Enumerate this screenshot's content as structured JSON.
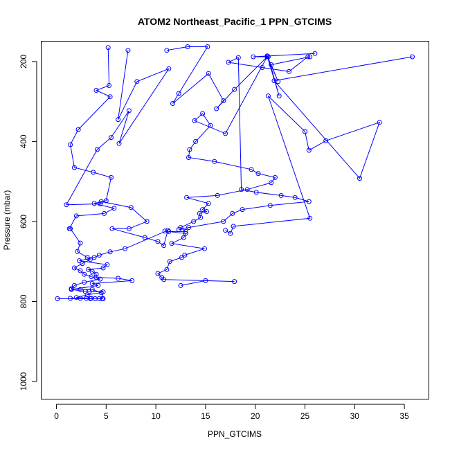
{
  "chart_data": {
    "type": "scatter",
    "title": "ATOM2 Northeast_Pacific_1 PPN_GTCIMS",
    "xlabel": "PPN_GTCIMS",
    "ylabel": "Pressure (mbar)",
    "xlim": [
      -1.5,
      37.5
    ],
    "ylim": [
      1045,
      150
    ],
    "y_reversed": true,
    "x_ticks": [
      0,
      5,
      10,
      15,
      20,
      25,
      30,
      35
    ],
    "y_ticks": [
      200,
      400,
      600,
      800,
      1000
    ],
    "grid": false,
    "legend": "none",
    "color": "#0000ff",
    "marker": "open-circle",
    "connect_points": true,
    "series": [
      {
        "x": [
          5.2,
          5.3,
          4,
          5.4,
          2.2,
          1.4,
          1.8,
          3.7,
          5.5,
          5.0,
          3.8,
          5.8,
          4.8,
          2.0,
          1.3,
          1.4,
          2.4,
          2.1,
          3.1,
          3.4,
          2.6,
          1.8,
          2.4,
          2.8,
          3.5,
          4.4,
          2.8,
          1.8,
          1.5,
          2.4,
          3.6,
          4.5,
          3.1,
          2.0,
          3.5,
          2.4,
          1.4,
          3.0,
          3.9,
          4.7,
          4.3,
          3.4,
          0.1
        ],
        "y": [
          165,
          260,
          272,
          288,
          370,
          408,
          465,
          477,
          490,
          548,
          555,
          567,
          580,
          586,
          618,
          618,
          654,
          675,
          690,
          695,
          705,
          716,
          723,
          732,
          738,
          744,
          752,
          760,
          768,
          770,
          770,
          778,
          783,
          790,
          792,
          792,
          792,
          792,
          793,
          793,
          793,
          793,
          793
        ]
      },
      {
        "x": [
          7.2,
          6.2,
          8.1,
          11.3,
          6.3,
          7.3,
          5.5,
          4.1,
          1.0,
          4.4,
          4.5,
          7.5,
          9.1,
          7.3,
          5.6,
          8.9,
          10.2,
          10.8,
          11.2,
          6.9,
          5.4,
          4.3,
          3.8,
          2.3,
          5.1,
          4.7,
          3.2,
          3.6,
          4.0,
          4.0,
          6.2,
          7.6,
          3.6,
          4.2,
          1.5,
          2.9,
          3.3,
          4.7,
          4.6
        ],
        "y": [
          172,
          345,
          250,
          218,
          405,
          323,
          390,
          420,
          558,
          556,
          550,
          565,
          600,
          618,
          618,
          640,
          650,
          660,
          622,
          668,
          676,
          684,
          690,
          698,
          708,
          716,
          720,
          725,
          732,
          740,
          742,
          748,
          755,
          760,
          770,
          775,
          775,
          776,
          793
        ]
      },
      {
        "x": [
          11.1,
          13.2,
          15.2,
          12.3,
          11.7,
          15.3,
          16.8,
          16.1,
          17.9,
          21.2,
          17.0,
          13.9,
          14.7,
          15.5,
          14.0,
          13.4,
          13.3,
          15.9,
          19.6,
          20.3,
          22.0,
          21.6,
          19.2,
          16.2,
          13.1,
          15.3,
          14.7,
          15.1,
          14.4,
          14.5,
          13.8,
          12.5,
          13.0,
          11.3,
          10.9,
          13.0,
          12.8,
          11.6,
          14.9,
          12.9,
          12.6,
          11.4,
          11.1,
          10.2,
          10.6,
          10.8,
          17.9,
          15.0,
          12.5
        ],
        "y": [
          172,
          163,
          163,
          280,
          305,
          230,
          298,
          318,
          270,
          188,
          380,
          348,
          330,
          360,
          400,
          420,
          440,
          450,
          470,
          480,
          490,
          503,
          520,
          535,
          540,
          555,
          570,
          575,
          580,
          590,
          600,
          615,
          625,
          625,
          624,
          630,
          640,
          655,
          668,
          684,
          690,
          700,
          720,
          730,
          740,
          745,
          750,
          748,
          760
        ]
      },
      {
        "x": [
          26.0,
          19.8,
          21.3,
          22.4,
          21.2,
          22.3,
          21.6,
          25.5,
          25.3,
          23.4,
          20.7,
          17.3,
          18.3,
          18.6,
          20.1,
          22.6,
          24.0,
          25.4,
          21.5,
          18.7,
          17.7,
          16.8,
          13.3,
          12.3
        ],
        "y": [
          180,
          188,
          188,
          286,
          186,
          250,
          208,
          188,
          188,
          225,
          215,
          202,
          190,
          520,
          527,
          535,
          540,
          550,
          560,
          570,
          580,
          600,
          615,
          620
        ]
      },
      {
        "x": [
          35.8,
          21.9,
          30.5,
          32.5,
          27.1,
          25.4,
          25.0,
          21.3,
          25.5,
          17.8,
          17.5,
          17.0
        ],
        "y": [
          188,
          248,
          492,
          352,
          398,
          422,
          375,
          286,
          592,
          612,
          630,
          622
        ]
      }
    ]
  }
}
